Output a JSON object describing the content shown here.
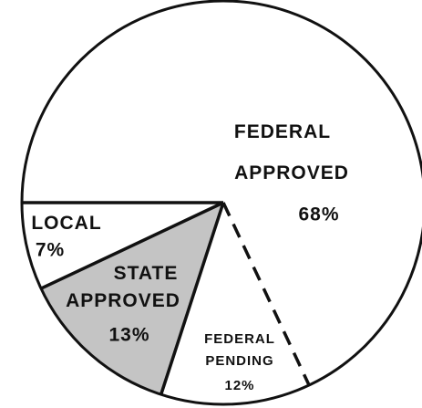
{
  "chart_data": {
    "type": "pie",
    "categories": [
      "FEDERAL APPROVED",
      "FEDERAL PENDING",
      "STATE APPROVED",
      "LOCAL"
    ],
    "values": [
      68,
      12,
      13,
      7
    ],
    "value_labels": [
      "68%",
      "12%",
      "13%",
      "7%"
    ],
    "colors": [
      "#ffffff",
      "#ffffff",
      "#c4c4c4",
      "#ffffff"
    ]
  }
}
